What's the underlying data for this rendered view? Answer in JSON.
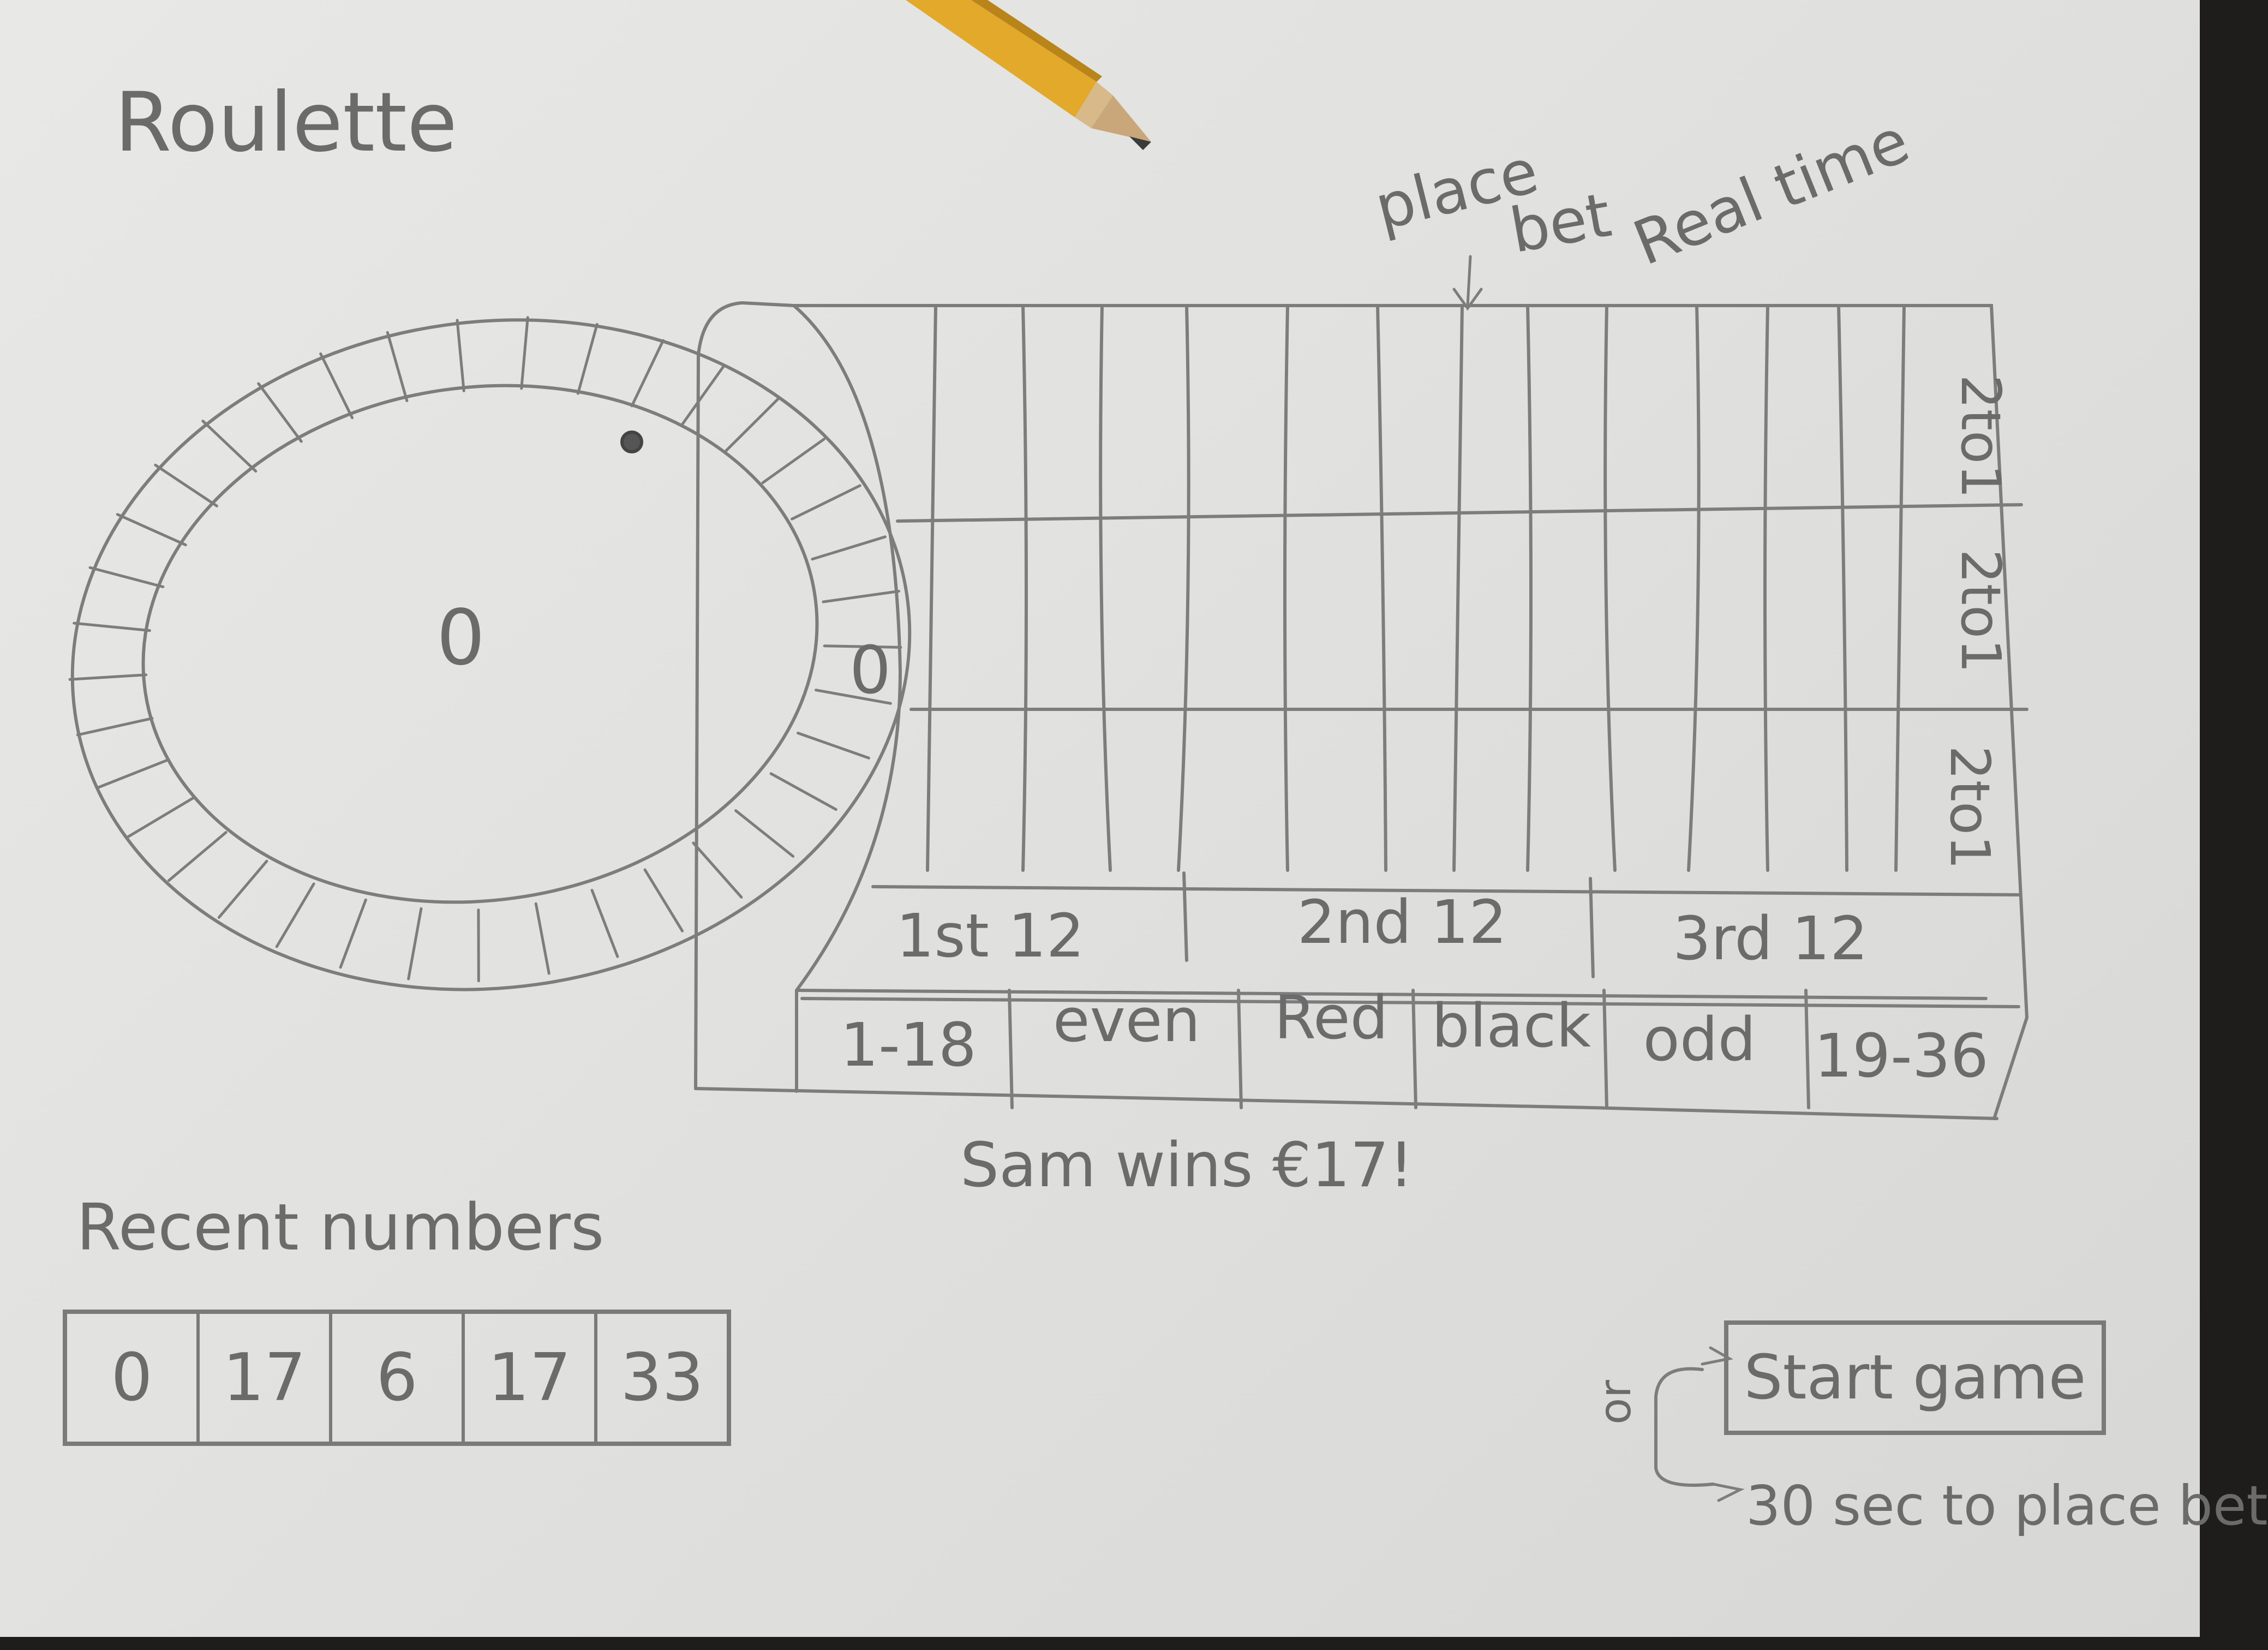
{
  "title": "Roulette",
  "annotations": {
    "place": "place",
    "bet": "bet",
    "real_time": "Real time"
  },
  "wheel": {
    "center_label": "0",
    "ball_icon": "ball-icon"
  },
  "table": {
    "zero_label": "0",
    "column_bets": [
      "2to1",
      "2to1",
      "2to1"
    ],
    "dozens": [
      "1st 12",
      "2nd 12",
      "3rd 12"
    ],
    "outside_bets": [
      "1-18",
      "even",
      "Red",
      "black",
      "odd",
      "19-36"
    ]
  },
  "result_message": "Sam wins €17!",
  "recent": {
    "heading": "Recent numbers",
    "numbers": [
      "0",
      "17",
      "6",
      "17",
      "33"
    ]
  },
  "controls": {
    "or_label": "or",
    "start_button": "Start game",
    "timer_note": "30 sec to place bet"
  },
  "colors": {
    "paper": "#e3e3e1",
    "pencil_ink": "#6b6b6b",
    "pencil_body": "#e0a92c"
  }
}
